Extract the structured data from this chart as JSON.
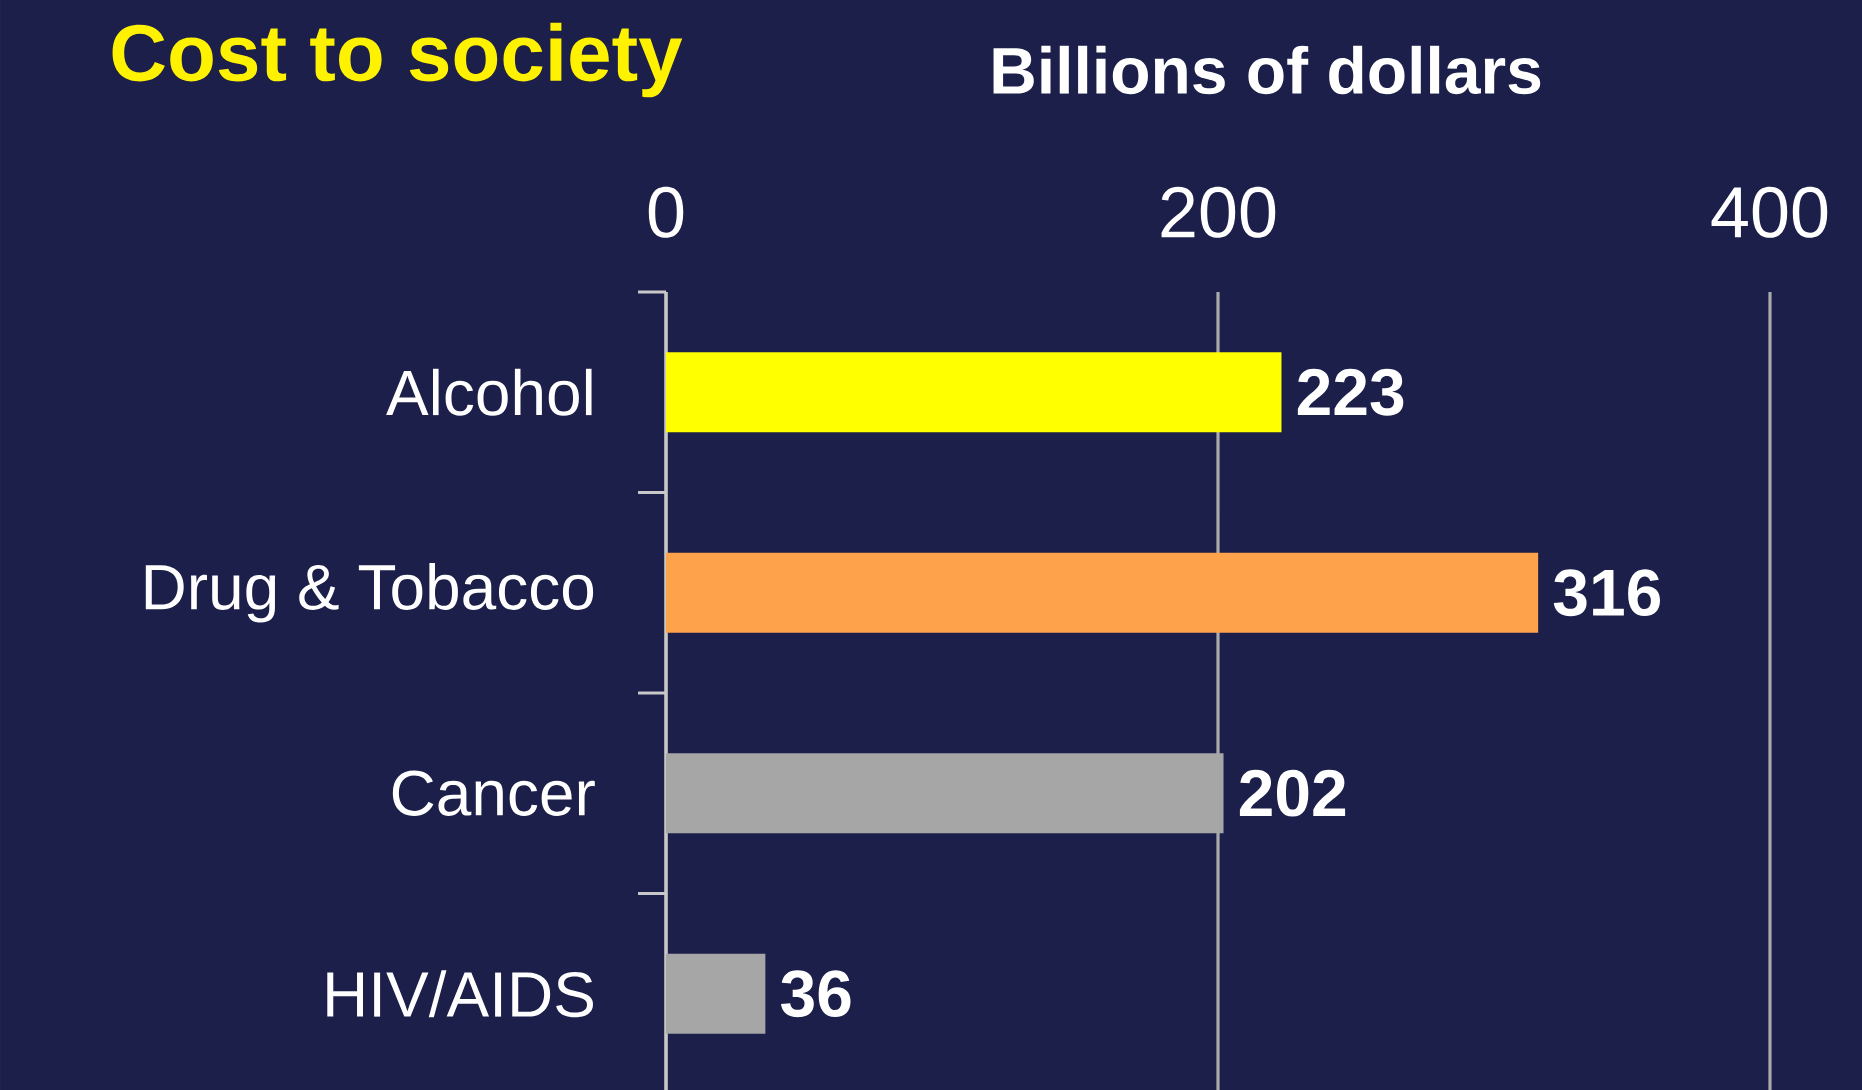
{
  "chart_data": {
    "type": "bar",
    "orientation": "horizontal",
    "title": "Cost to society",
    "xlabel": "Billions of dollars",
    "categories": [
      "Alcohol",
      "Drug & Tobacco",
      "Cancer",
      "HIV/AIDS"
    ],
    "values": [
      223,
      316,
      202,
      36
    ],
    "colors": [
      "#ffff00",
      "#ffa24c",
      "#a6a6a6",
      "#a6a6a6"
    ],
    "xlim": [
      0,
      400
    ],
    "xticks": [
      0,
      200,
      400
    ],
    "grid": "x",
    "data_labels": true
  }
}
